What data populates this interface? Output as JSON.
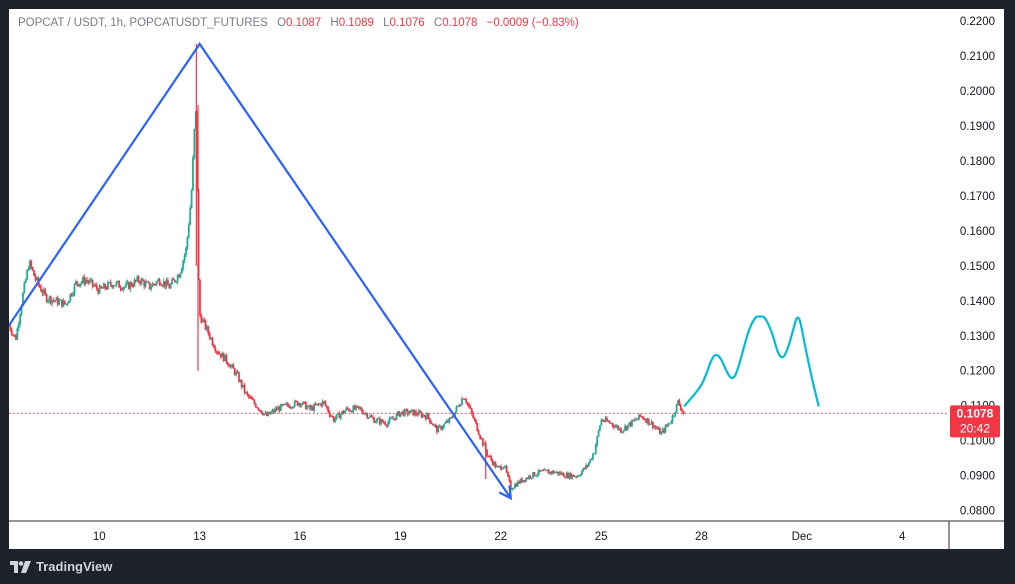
{
  "header": {
    "symbol": "POPCAT / USDT, 1h, POPCATUSDT_FUTURES",
    "open_label": "O",
    "open": "0.1087",
    "high_label": "H",
    "high": "0.1089",
    "low_label": "L",
    "low": "0.1076",
    "close_label": "C",
    "close": "0.1078",
    "change": "−0.0009 (−0.83%)"
  },
  "price_tag": {
    "price": "0.1078",
    "countdown": "20:42"
  },
  "brand": {
    "name": "TradingView"
  },
  "colors": {
    "up": "#22ab94",
    "down": "#f23645",
    "trendline": "#2962ff",
    "projection": "#00bcd4",
    "price_line": "#f23645"
  },
  "chart_data": {
    "type": "candlestick",
    "title": "",
    "ylim": [
      0.077,
      0.2235
    ],
    "yticks": [
      "0.2200",
      "0.2100",
      "0.2000",
      "0.1900",
      "0.1800",
      "0.1700",
      "0.1600",
      "0.1500",
      "0.1400",
      "0.1300",
      "0.1200",
      "0.1100",
      "0.1000",
      "0.0900",
      "0.0800"
    ],
    "xticks": [
      {
        "label": "10",
        "day": 10
      },
      {
        "label": "13",
        "day": 13
      },
      {
        "label": "16",
        "day": 16
      },
      {
        "label": "19",
        "day": 19
      },
      {
        "label": "22",
        "day": 22
      },
      {
        "label": "25",
        "day": 25
      },
      {
        "label": "28",
        "day": 28
      },
      {
        "label": "Dec",
        "day": 31
      },
      {
        "label": "4",
        "day": 34
      }
    ],
    "xlim_days": [
      7.3,
      35.4
    ],
    "last_day": 27.48,
    "last_price": 0.1078,
    "price_path": [
      [
        7.3,
        0.133
      ],
      [
        7.5,
        0.129
      ],
      [
        7.7,
        0.141
      ],
      [
        7.9,
        0.151
      ],
      [
        8.1,
        0.146
      ],
      [
        8.4,
        0.141
      ],
      [
        8.7,
        0.14
      ],
      [
        9.0,
        0.139
      ],
      [
        9.3,
        0.145
      ],
      [
        9.6,
        0.146
      ],
      [
        10.0,
        0.143
      ],
      [
        10.4,
        0.145
      ],
      [
        10.8,
        0.144
      ],
      [
        11.2,
        0.146
      ],
      [
        11.5,
        0.144
      ],
      [
        11.8,
        0.146
      ],
      [
        12.1,
        0.144
      ],
      [
        12.4,
        0.148
      ],
      [
        12.6,
        0.155
      ],
      [
        12.75,
        0.17
      ],
      [
        12.85,
        0.19
      ],
      [
        12.9,
        0.195
      ],
      [
        12.95,
        0.15
      ],
      [
        13.0,
        0.136
      ],
      [
        13.2,
        0.132
      ],
      [
        13.5,
        0.126
      ],
      [
        13.8,
        0.123
      ],
      [
        14.1,
        0.119
      ],
      [
        14.4,
        0.113
      ],
      [
        14.7,
        0.11
      ],
      [
        15.0,
        0.107
      ],
      [
        15.3,
        0.109
      ],
      [
        15.6,
        0.11
      ],
      [
        16.0,
        0.111
      ],
      [
        16.3,
        0.109
      ],
      [
        16.7,
        0.111
      ],
      [
        17.0,
        0.106
      ],
      [
        17.4,
        0.109
      ],
      [
        17.8,
        0.109
      ],
      [
        18.2,
        0.106
      ],
      [
        18.6,
        0.105
      ],
      [
        19.0,
        0.108
      ],
      [
        19.4,
        0.108
      ],
      [
        19.8,
        0.107
      ],
      [
        20.1,
        0.103
      ],
      [
        20.5,
        0.106
      ],
      [
        20.9,
        0.113
      ],
      [
        21.2,
        0.106
      ],
      [
        21.4,
        0.101
      ],
      [
        21.6,
        0.096
      ],
      [
        21.9,
        0.092
      ],
      [
        22.1,
        0.093
      ],
      [
        22.3,
        0.0865
      ],
      [
        22.6,
        0.0885
      ],
      [
        22.9,
        0.09
      ],
      [
        23.2,
        0.091
      ],
      [
        23.6,
        0.091
      ],
      [
        24.0,
        0.09
      ],
      [
        24.3,
        0.09
      ],
      [
        24.6,
        0.093
      ],
      [
        24.8,
        0.097
      ],
      [
        25.0,
        0.106
      ],
      [
        25.3,
        0.105
      ],
      [
        25.6,
        0.103
      ],
      [
        25.9,
        0.105
      ],
      [
        26.2,
        0.107
      ],
      [
        26.5,
        0.105
      ],
      [
        26.8,
        0.102
      ],
      [
        27.1,
        0.106
      ],
      [
        27.3,
        0.111
      ],
      [
        27.48,
        0.1078
      ]
    ],
    "spikes": [
      {
        "day": 12.9,
        "high": 0.2135,
        "low": 0.15
      },
      {
        "day": 12.95,
        "high": 0.196,
        "low": 0.12
      },
      {
        "day": 21.55,
        "high": 0.1,
        "low": 0.089
      }
    ],
    "trendline": [
      [
        7.3,
        0.133
      ],
      [
        13.0,
        0.2135
      ],
      [
        22.3,
        0.0835
      ]
    ],
    "projection": [
      [
        27.5,
        0.11
      ],
      [
        28.0,
        0.116
      ],
      [
        28.3,
        0.123
      ],
      [
        28.45,
        0.1245
      ],
      [
        28.6,
        0.123
      ],
      [
        28.8,
        0.119
      ],
      [
        28.95,
        0.118
      ],
      [
        29.1,
        0.121
      ],
      [
        29.4,
        0.131
      ],
      [
        29.6,
        0.135
      ],
      [
        29.75,
        0.1355
      ],
      [
        29.9,
        0.135
      ],
      [
        30.1,
        0.131
      ],
      [
        30.3,
        0.125
      ],
      [
        30.45,
        0.124
      ],
      [
        30.6,
        0.127
      ],
      [
        30.75,
        0.132
      ],
      [
        30.85,
        0.135
      ],
      [
        30.95,
        0.134
      ],
      [
        31.1,
        0.127
      ],
      [
        31.3,
        0.118
      ],
      [
        31.5,
        0.11
      ]
    ]
  }
}
